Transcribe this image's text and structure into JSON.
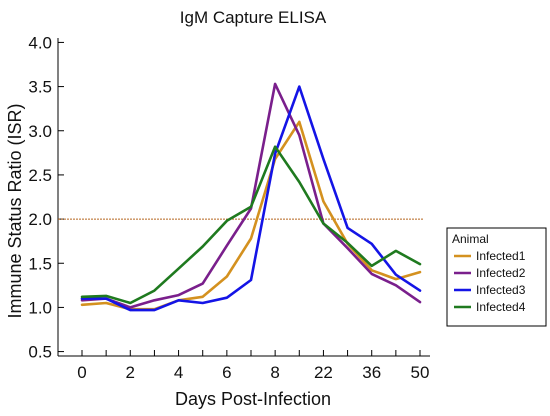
{
  "chart_data": {
    "type": "line",
    "title": "IgM Capture ELISA",
    "xlabel": "Days Post-Infection",
    "ylabel": "Immune Status Ratio (ISR)",
    "x_tick_labels": [
      "0",
      "2",
      "4",
      "6",
      "8",
      "22",
      "36",
      "50"
    ],
    "y_tick_labels": [
      "0.5",
      "1.0",
      "1.5",
      "2.0",
      "2.5",
      "3.0",
      "3.5",
      "4.0"
    ],
    "ylim": [
      0.45,
      4.05
    ],
    "grid": false,
    "threshold": {
      "value": 2.0,
      "color": "#b5651d"
    },
    "legend": {
      "title": "Animal",
      "placement": "right"
    },
    "series": [
      {
        "name": "Infected1",
        "color": "#d4911f",
        "x": [
          0,
          1,
          2,
          3,
          4,
          5,
          6,
          7,
          8,
          9,
          10,
          11,
          12,
          13,
          14
        ],
        "y": [
          1.03,
          1.05,
          0.98,
          0.98,
          1.08,
          1.12,
          1.35,
          1.78,
          2.68,
          3.1,
          2.2,
          1.72,
          1.42,
          1.32,
          1.4
        ]
      },
      {
        "name": "Infected2",
        "color": "#7a1f8c",
        "x": [
          0,
          1,
          2,
          3,
          4,
          5,
          6,
          7,
          8,
          9,
          10,
          11,
          12,
          13,
          14
        ],
        "y": [
          1.08,
          1.1,
          1.0,
          1.08,
          1.14,
          1.27,
          1.7,
          2.12,
          3.53,
          2.95,
          1.95,
          1.67,
          1.38,
          1.25,
          1.06
        ]
      },
      {
        "name": "Infected3",
        "color": "#1414e6",
        "x": [
          0,
          1,
          2,
          3,
          4,
          5,
          6,
          7,
          8,
          9,
          10,
          11,
          12,
          13,
          14
        ],
        "y": [
          1.1,
          1.1,
          0.97,
          0.97,
          1.08,
          1.05,
          1.11,
          1.31,
          2.74,
          3.5,
          2.68,
          1.9,
          1.72,
          1.37,
          1.19
        ]
      },
      {
        "name": "Infected4",
        "color": "#1f7a1f",
        "x": [
          0,
          1,
          2,
          3,
          4,
          5,
          6,
          7,
          8,
          9,
          10,
          11,
          12,
          13,
          14
        ],
        "y": [
          1.12,
          1.13,
          1.05,
          1.19,
          1.44,
          1.69,
          1.98,
          2.14,
          2.82,
          2.42,
          1.95,
          1.73,
          1.47,
          1.64,
          1.49
        ]
      }
    ]
  }
}
